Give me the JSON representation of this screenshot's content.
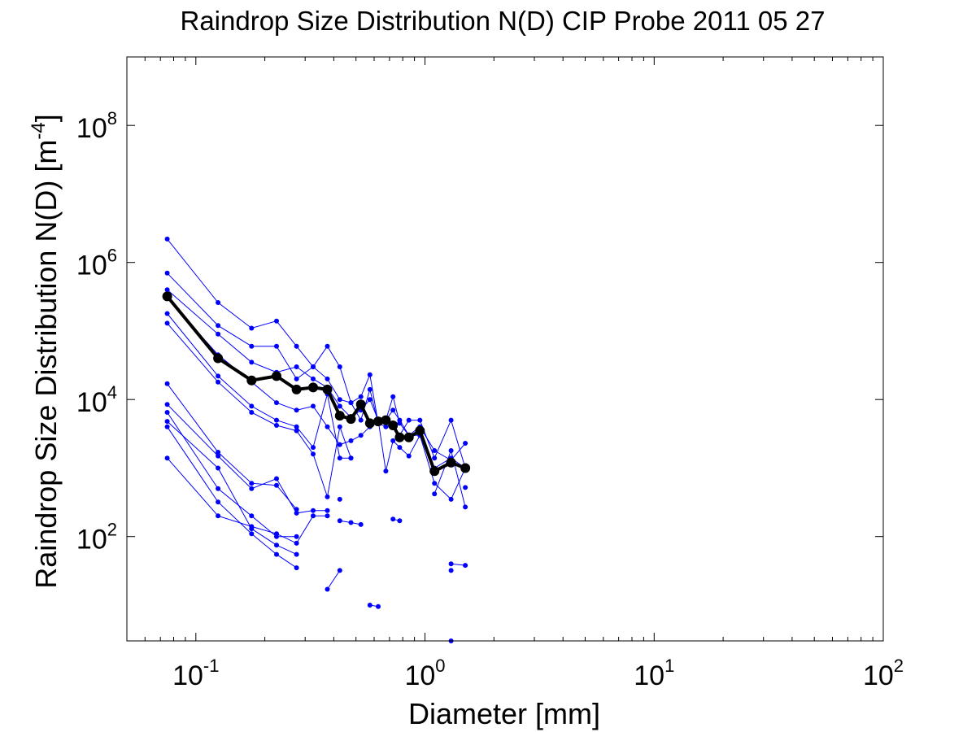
{
  "chart_data": {
    "type": "line",
    "title": "Raindrop Size Distribution N(D) CIP Probe 2011 05 27",
    "xlabel": "Diameter [mm]",
    "ylabel_main": "Raindrop Size Distribution N(D) [m",
    "ylabel_sup": "-4",
    "ylabel_close": "]",
    "xscale": "log",
    "yscale": "log",
    "xlim": [
      0.05,
      100
    ],
    "ylim": [
      3,
      1000000000
    ],
    "grid": false,
    "x_ticks": [
      {
        "base": "10",
        "exp": "-1",
        "value": 0.1
      },
      {
        "base": "10",
        "exp": "0",
        "value": 1
      },
      {
        "base": "10",
        "exp": "1",
        "value": 10
      },
      {
        "base": "10",
        "exp": "2",
        "value": 100
      }
    ],
    "y_ticks": [
      {
        "base": "10",
        "exp": "2",
        "value": 100
      },
      {
        "base": "10",
        "exp": "4",
        "value": 10000
      },
      {
        "base": "10",
        "exp": "6",
        "value": 1000000
      },
      {
        "base": "10",
        "exp": "8",
        "value": 100000000
      }
    ],
    "colors": {
      "series": "#0000ff",
      "mean": "#000000",
      "axes": "#000000"
    },
    "series": [
      {
        "x": [
          0.075,
          0.125,
          0.175,
          0.225,
          0.275,
          0.325,
          0.375,
          0.425,
          0.475,
          0.525,
          0.575,
          0.625,
          0.675,
          0.725,
          0.775,
          0.85,
          0.95,
          1.1,
          1.3,
          1.5
        ],
        "y": [
          2200000,
          260000,
          110000,
          140000,
          60000,
          30000,
          60000,
          30000,
          9000,
          11000,
          23000,
          4500,
          5000,
          11000,
          4500,
          3000,
          4000,
          1800,
          1300,
          2300
        ]
      },
      {
        "x": [
          0.075,
          0.125,
          0.175,
          0.225,
          0.275,
          0.325,
          0.375,
          0.425,
          0.475,
          0.525,
          0.575,
          0.625,
          0.675,
          0.725,
          0.775,
          0.85,
          0.95,
          1.1,
          1.3,
          1.5
        ],
        "y": [
          700000,
          120000,
          60000,
          60000,
          20000,
          30000,
          20000,
          10000,
          9000,
          5000,
          14000,
          4500,
          4000,
          4500,
          3000,
          5000,
          5000,
          1400,
          5000,
          1000
        ]
      },
      {
        "x": [
          0.075,
          0.125,
          0.175,
          0.225,
          0.275,
          0.325,
          0.375,
          0.425,
          0.475,
          0.525,
          0.575,
          0.625,
          0.675,
          0.725,
          0.775,
          0.85,
          0.95,
          1.1,
          1.3,
          1.5
        ],
        "y": [
          400000,
          90000,
          35000,
          25000,
          30000,
          20000,
          15000,
          8000,
          5500,
          7000,
          10000,
          5000,
          5000,
          7000,
          5000,
          3000,
          3000,
          1000,
          1400,
          1000
        ]
      },
      {
        "x": [
          0.075,
          0.125,
          0.175,
          0.225,
          0.275,
          0.325,
          0.375,
          0.425,
          0.475
        ],
        "y": [
          180000,
          22000,
          8000,
          5000,
          4000,
          2000,
          12000,
          1400,
          1400
        ]
      },
      {
        "x": [
          0.075,
          0.125,
          0.175,
          0.225,
          0.275,
          0.325,
          0.375,
          0.425,
          0.475
        ],
        "y": [
          130000,
          18000,
          6500,
          4200,
          3500,
          1600,
          380,
          4000,
          1400
        ]
      },
      {
        "x": [
          0.075,
          0.125,
          0.175,
          0.225,
          0.275,
          0.325,
          0.375,
          0.425,
          0.475,
          0.525,
          0.575,
          0.625,
          0.675,
          0.725,
          0.775,
          0.85,
          0.95,
          1.1,
          1.3,
          1.5
        ],
        "y": [
          300000,
          45000,
          18000,
          9000,
          7000,
          8000,
          4000,
          2200,
          2500,
          3000,
          4000,
          5000,
          900,
          2500,
          2000,
          1500,
          3000,
          600,
          350,
          1000
        ]
      },
      {
        "x": [
          0.075,
          0.125,
          0.175,
          0.225,
          0.275
        ],
        "y": [
          17000,
          1700,
          600,
          560,
          250
        ]
      },
      {
        "x": [
          0.075,
          0.125,
          0.175,
          0.225,
          0.275,
          0.325,
          0.375
        ],
        "y": [
          8500,
          1500,
          500,
          700,
          220,
          240,
          240
        ]
      },
      {
        "x": [
          0.075,
          0.125,
          0.175,
          0.225,
          0.275
        ],
        "y": [
          6500,
          500,
          200,
          100,
          100
        ]
      },
      {
        "x": [
          0.075,
          0.125,
          0.175,
          0.225,
          0.275
        ],
        "y": [
          4800,
          1000,
          130,
          75,
          55
        ]
      },
      {
        "x": [
          0.075,
          0.125,
          0.175,
          0.225,
          0.275
        ],
        "y": [
          4000,
          320,
          110,
          55,
          35
        ]
      },
      {
        "x": [
          0.075,
          0.125,
          0.175,
          0.225,
          0.275,
          0.325,
          0.375
        ],
        "y": [
          1400,
          200,
          140,
          110,
          80,
          200,
          200
        ]
      },
      {
        "x": [
          0.425,
          0.475,
          0.525
        ],
        "y": [
          170,
          160,
          150
        ]
      },
      {
        "x": [
          0.725,
          0.775
        ],
        "y": [
          180,
          170
        ]
      },
      {
        "x": [
          0.375,
          0.425
        ],
        "y": [
          17,
          32
        ]
      },
      {
        "x": [
          0.575,
          0.625
        ],
        "y": [
          10,
          9.5
        ]
      },
      {
        "x": [
          0.425
        ],
        "y": [
          350
        ]
      },
      {
        "x": [
          1.1,
          1.3,
          1.5
        ],
        "y": [
          420,
          1800,
          270
        ]
      },
      {
        "x": [
          1.3,
          1.5
        ],
        "y": [
          40,
          38
        ]
      },
      {
        "x": [
          1.3
        ],
        "y": [
          32
        ]
      },
      {
        "x": [
          1.5
        ],
        "y": [
          520
        ]
      },
      {
        "x": [
          1.3
        ],
        "y": [
          3
        ]
      }
    ],
    "mean": {
      "x": [
        0.075,
        0.125,
        0.175,
        0.225,
        0.275,
        0.325,
        0.375,
        0.425,
        0.475,
        0.525,
        0.575,
        0.625,
        0.675,
        0.725,
        0.775,
        0.85,
        0.95,
        1.1,
        1.3,
        1.5
      ],
      "y": [
        320000,
        40000,
        19000,
        22000,
        14000,
        15000,
        14000,
        5800,
        5200,
        8500,
        4500,
        4800,
        5000,
        4200,
        2800,
        2800,
        3500,
        900,
        1200,
        1000
      ]
    }
  }
}
